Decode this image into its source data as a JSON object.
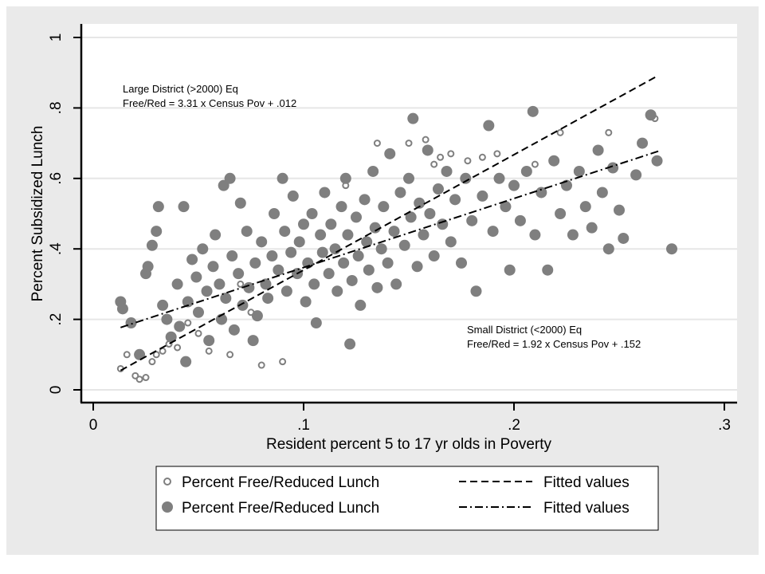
{
  "chart_data": {
    "type": "scatter",
    "xlabel": "Resident percent 5 to 17 yr olds in Poverty",
    "ylabel": "Percent Subsidized Lunch",
    "xlim": [
      0,
      0.3
    ],
    "ylim": [
      0,
      1
    ],
    "xticks": [
      {
        "v": 0,
        "label": "0"
      },
      {
        "v": 0.1,
        "label": ".1"
      },
      {
        "v": 0.2,
        "label": ".2"
      },
      {
        "v": 0.3,
        "label": ".3"
      }
    ],
    "yticks": [
      {
        "v": 0,
        "label": "0"
      },
      {
        "v": 0.2,
        "label": ".2"
      },
      {
        "v": 0.4,
        "label": ".4"
      },
      {
        "v": 0.6,
        "label": ".6"
      },
      {
        "v": 0.8,
        "label": ".8"
      },
      {
        "v": 1,
        "label": "1"
      }
    ],
    "grid": "horizontal",
    "legend_position": "bottom",
    "colors": {
      "markers": "#7f7f7f",
      "lines": "#000000",
      "background": "#eaeaea",
      "grid": "#e6e6e6"
    },
    "annotations": {
      "large": {
        "line1": "Large District (>2000) Eq",
        "line2": "Free/Red = 3.31 x Census Pov + .012"
      },
      "small": {
        "line1": "Small District (<2000) Eq",
        "line2": "Free/Red = 1.92 x Census Pov + .152"
      }
    },
    "series": [
      {
        "name": "Percent Free/Reduced Lunch",
        "marker": "hollow-circle",
        "points": [
          [
            0.013,
            0.06
          ],
          [
            0.016,
            0.1
          ],
          [
            0.02,
            0.04
          ],
          [
            0.022,
            0.03
          ],
          [
            0.025,
            0.035
          ],
          [
            0.028,
            0.08
          ],
          [
            0.03,
            0.1
          ],
          [
            0.033,
            0.11
          ],
          [
            0.036,
            0.13
          ],
          [
            0.04,
            0.12
          ],
          [
            0.045,
            0.19
          ],
          [
            0.05,
            0.16
          ],
          [
            0.055,
            0.11
          ],
          [
            0.06,
            0.2
          ],
          [
            0.065,
            0.1
          ],
          [
            0.07,
            0.3
          ],
          [
            0.075,
            0.22
          ],
          [
            0.08,
            0.07
          ],
          [
            0.09,
            0.08
          ],
          [
            0.12,
            0.58
          ],
          [
            0.135,
            0.7
          ],
          [
            0.15,
            0.7
          ],
          [
            0.158,
            0.71
          ],
          [
            0.162,
            0.64
          ],
          [
            0.165,
            0.66
          ],
          [
            0.17,
            0.67
          ],
          [
            0.178,
            0.65
          ],
          [
            0.185,
            0.66
          ],
          [
            0.192,
            0.67
          ],
          [
            0.21,
            0.64
          ],
          [
            0.222,
            0.73
          ],
          [
            0.245,
            0.73
          ],
          [
            0.267,
            0.77
          ]
        ]
      },
      {
        "name": "Percent Free/Reduced Lunch",
        "marker": "solid-circle",
        "points": [
          [
            0.013,
            0.25
          ],
          [
            0.014,
            0.23
          ],
          [
            0.018,
            0.19
          ],
          [
            0.022,
            0.1
          ],
          [
            0.025,
            0.33
          ],
          [
            0.026,
            0.35
          ],
          [
            0.028,
            0.41
          ],
          [
            0.03,
            0.45
          ],
          [
            0.031,
            0.52
          ],
          [
            0.033,
            0.24
          ],
          [
            0.035,
            0.2
          ],
          [
            0.037,
            0.15
          ],
          [
            0.04,
            0.3
          ],
          [
            0.041,
            0.18
          ],
          [
            0.043,
            0.52
          ],
          [
            0.044,
            0.08
          ],
          [
            0.045,
            0.25
          ],
          [
            0.047,
            0.37
          ],
          [
            0.049,
            0.32
          ],
          [
            0.05,
            0.22
          ],
          [
            0.052,
            0.4
          ],
          [
            0.054,
            0.28
          ],
          [
            0.055,
            0.14
          ],
          [
            0.057,
            0.35
          ],
          [
            0.058,
            0.44
          ],
          [
            0.06,
            0.3
          ],
          [
            0.061,
            0.2
          ],
          [
            0.062,
            0.58
          ],
          [
            0.063,
            0.26
          ],
          [
            0.065,
            0.6
          ],
          [
            0.066,
            0.38
          ],
          [
            0.067,
            0.17
          ],
          [
            0.069,
            0.33
          ],
          [
            0.07,
            0.53
          ],
          [
            0.071,
            0.24
          ],
          [
            0.073,
            0.45
          ],
          [
            0.074,
            0.29
          ],
          [
            0.076,
            0.14
          ],
          [
            0.077,
            0.36
          ],
          [
            0.078,
            0.21
          ],
          [
            0.08,
            0.42
          ],
          [
            0.082,
            0.3
          ],
          [
            0.083,
            0.26
          ],
          [
            0.085,
            0.38
          ],
          [
            0.086,
            0.5
          ],
          [
            0.088,
            0.34
          ],
          [
            0.09,
            0.6
          ],
          [
            0.091,
            0.45
          ],
          [
            0.092,
            0.28
          ],
          [
            0.094,
            0.39
          ],
          [
            0.095,
            0.55
          ],
          [
            0.097,
            0.33
          ],
          [
            0.098,
            0.42
          ],
          [
            0.1,
            0.47
          ],
          [
            0.101,
            0.25
          ],
          [
            0.102,
            0.36
          ],
          [
            0.104,
            0.5
          ],
          [
            0.105,
            0.3
          ],
          [
            0.106,
            0.19
          ],
          [
            0.108,
            0.44
          ],
          [
            0.109,
            0.39
          ],
          [
            0.11,
            0.56
          ],
          [
            0.112,
            0.33
          ],
          [
            0.113,
            0.47
          ],
          [
            0.115,
            0.4
          ],
          [
            0.116,
            0.28
          ],
          [
            0.118,
            0.52
          ],
          [
            0.119,
            0.36
          ],
          [
            0.12,
            0.6
          ],
          [
            0.121,
            0.44
          ],
          [
            0.122,
            0.13
          ],
          [
            0.123,
            0.31
          ],
          [
            0.125,
            0.49
          ],
          [
            0.126,
            0.38
          ],
          [
            0.127,
            0.24
          ],
          [
            0.129,
            0.54
          ],
          [
            0.13,
            0.42
          ],
          [
            0.131,
            0.34
          ],
          [
            0.133,
            0.62
          ],
          [
            0.134,
            0.46
          ],
          [
            0.135,
            0.29
          ],
          [
            0.137,
            0.4
          ],
          [
            0.138,
            0.52
          ],
          [
            0.14,
            0.36
          ],
          [
            0.141,
            0.67
          ],
          [
            0.143,
            0.45
          ],
          [
            0.144,
            0.3
          ],
          [
            0.146,
            0.56
          ],
          [
            0.148,
            0.41
          ],
          [
            0.15,
            0.6
          ],
          [
            0.151,
            0.49
          ],
          [
            0.152,
            0.77
          ],
          [
            0.154,
            0.35
          ],
          [
            0.155,
            0.53
          ],
          [
            0.157,
            0.44
          ],
          [
            0.159,
            0.68
          ],
          [
            0.16,
            0.5
          ],
          [
            0.162,
            0.38
          ],
          [
            0.164,
            0.57
          ],
          [
            0.166,
            0.47
          ],
          [
            0.168,
            0.62
          ],
          [
            0.17,
            0.42
          ],
          [
            0.172,
            0.54
          ],
          [
            0.175,
            0.36
          ],
          [
            0.177,
            0.6
          ],
          [
            0.18,
            0.48
          ],
          [
            0.182,
            0.28
          ],
          [
            0.185,
            0.55
          ],
          [
            0.188,
            0.75
          ],
          [
            0.19,
            0.45
          ],
          [
            0.193,
            0.6
          ],
          [
            0.196,
            0.52
          ],
          [
            0.198,
            0.34
          ],
          [
            0.2,
            0.58
          ],
          [
            0.203,
            0.48
          ],
          [
            0.206,
            0.62
          ],
          [
            0.209,
            0.79
          ],
          [
            0.21,
            0.44
          ],
          [
            0.213,
            0.56
          ],
          [
            0.216,
            0.34
          ],
          [
            0.219,
            0.65
          ],
          [
            0.222,
            0.5
          ],
          [
            0.225,
            0.58
          ],
          [
            0.228,
            0.44
          ],
          [
            0.231,
            0.62
          ],
          [
            0.234,
            0.52
          ],
          [
            0.237,
            0.46
          ],
          [
            0.24,
            0.68
          ],
          [
            0.242,
            0.56
          ],
          [
            0.245,
            0.4
          ],
          [
            0.247,
            0.63
          ],
          [
            0.25,
            0.51
          ],
          [
            0.252,
            0.43
          ],
          [
            0.258,
            0.61
          ],
          [
            0.261,
            0.7
          ],
          [
            0.265,
            0.78
          ],
          [
            0.268,
            0.65
          ],
          [
            0.275,
            0.4
          ]
        ]
      },
      {
        "name": "Fitted values",
        "marker": "dashed-line",
        "line": [
          [
            0.013,
            0.055
          ],
          [
            0.268,
            0.89
          ]
        ]
      },
      {
        "name": "Fitted values",
        "marker": "dash-dot-line",
        "line": [
          [
            0.013,
            0.177
          ],
          [
            0.27,
            0.68
          ]
        ]
      }
    ]
  }
}
